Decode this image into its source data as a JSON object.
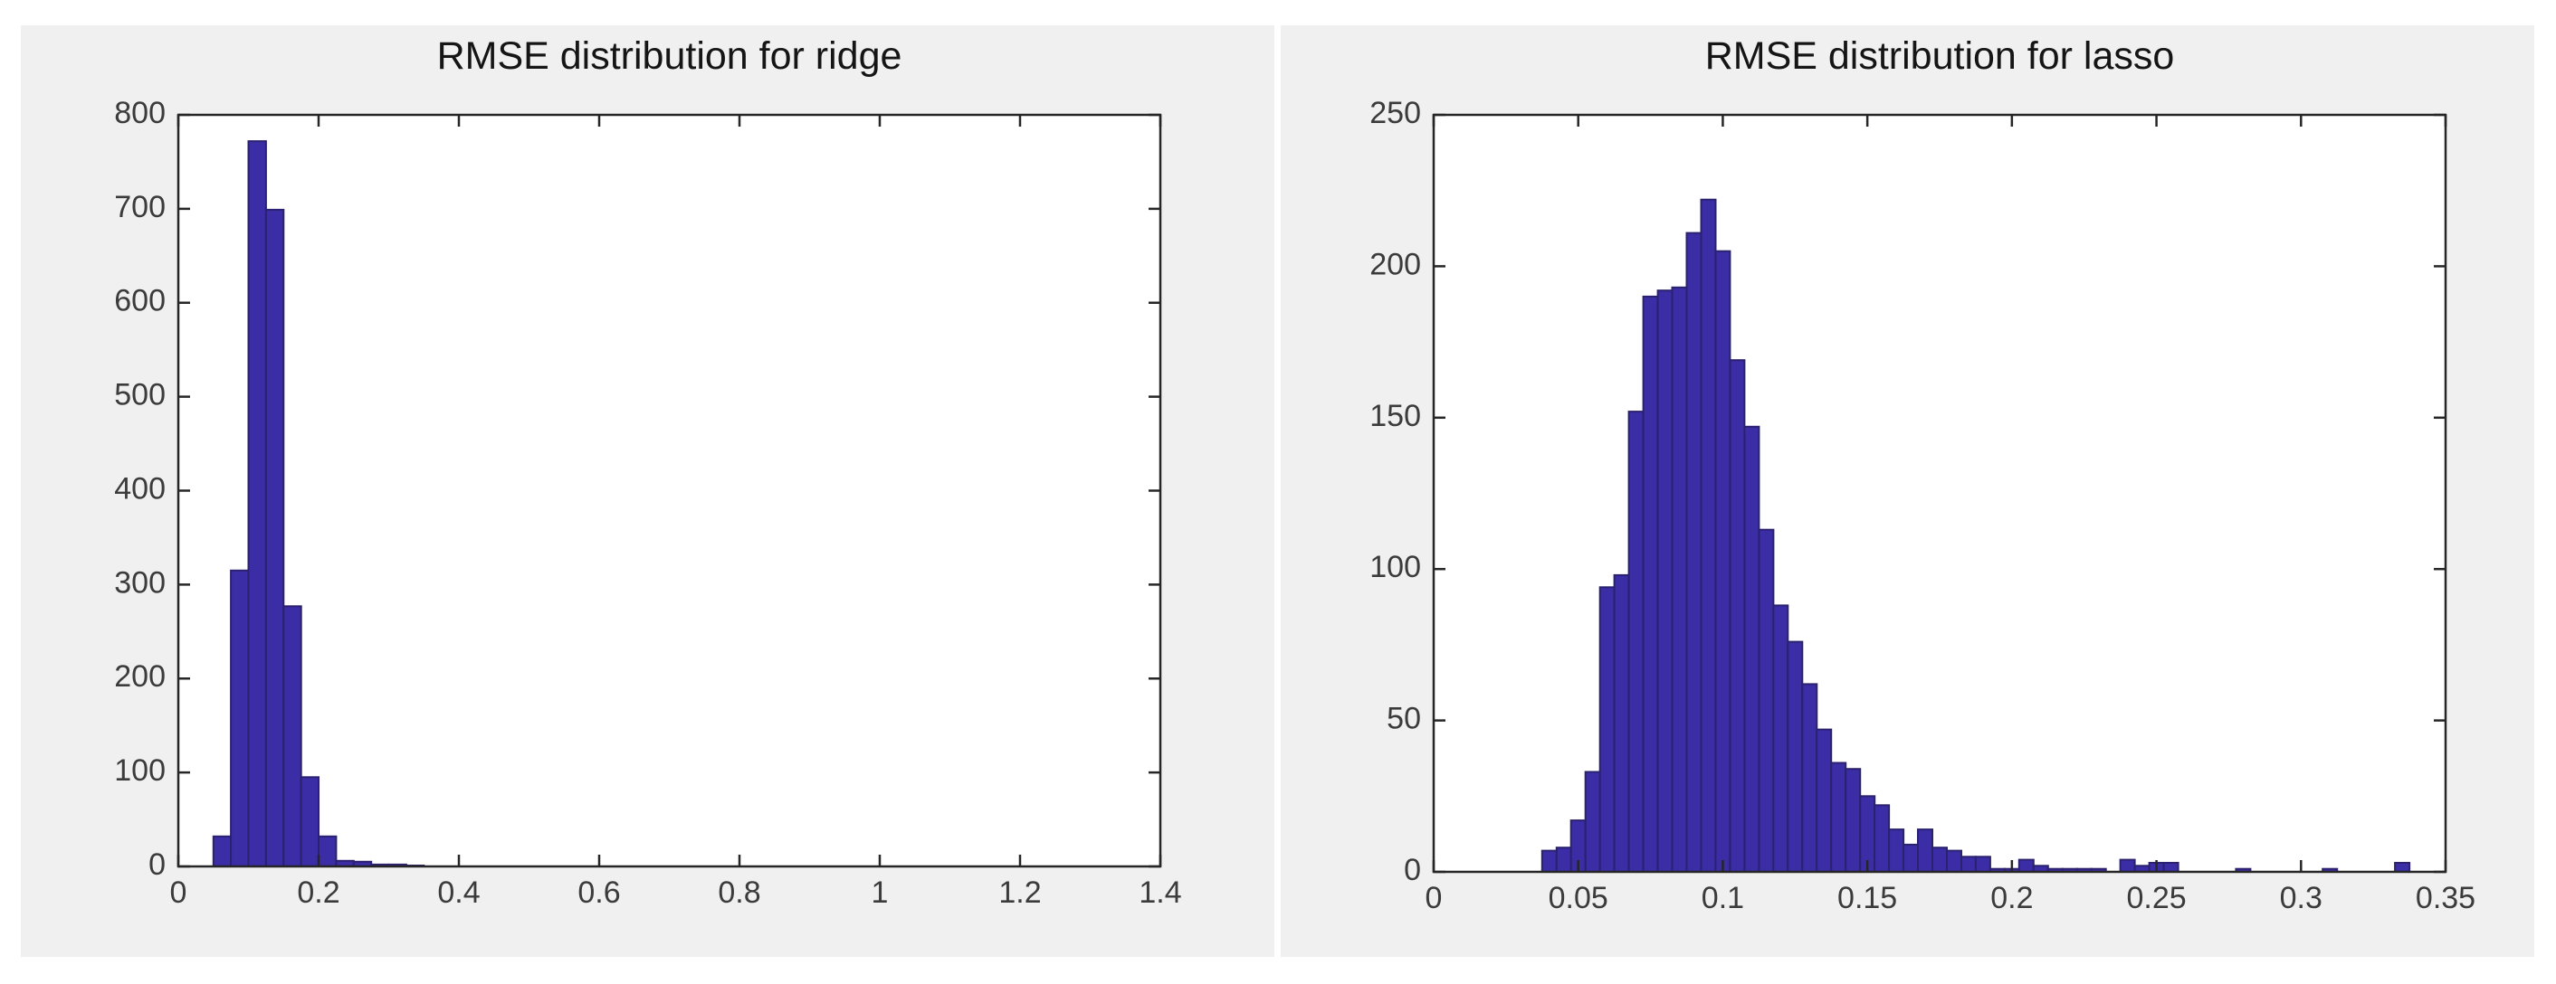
{
  "figure": {
    "background": "#ffffff",
    "panel_background": "#f0f0f0",
    "plot_background": "#ffffff",
    "bar_fill": "#3a2da5",
    "bar_edge": "#2b2170",
    "axis_color": "#262626",
    "tick_label_color": "#3b3b3b",
    "title_color": "#151515"
  },
  "chart_data": [
    {
      "id": "ridge",
      "type": "bar",
      "subtype": "histogram",
      "title": "RMSE distribution for ridge",
      "xlabel": "",
      "ylabel": "",
      "xlim": [
        0,
        1.4
      ],
      "ylim": [
        0,
        800
      ],
      "grid": false,
      "legend": null,
      "xtick_values": [
        0,
        0.2,
        0.4,
        0.6,
        0.8,
        1,
        1.2,
        1.4
      ],
      "xtick_labels": [
        "0",
        "0.2",
        "0.4",
        "0.6",
        "0.8",
        "1",
        "1.2",
        "1.4"
      ],
      "ytick_values": [
        0,
        100,
        200,
        300,
        400,
        500,
        600,
        700,
        800
      ],
      "ytick_labels": [
        "0",
        "100",
        "200",
        "300",
        "400",
        "500",
        "600",
        "700",
        "800"
      ],
      "bin_start": 0.05,
      "bin_width": 0.025,
      "values": [
        32,
        315,
        772,
        699,
        277,
        95,
        32,
        6,
        5,
        2,
        2,
        1
      ]
    },
    {
      "id": "lasso",
      "type": "bar",
      "subtype": "histogram",
      "title": "RMSE distribution for lasso",
      "xlabel": "",
      "ylabel": "",
      "xlim": [
        0,
        0.35
      ],
      "ylim": [
        0,
        250
      ],
      "grid": false,
      "legend": null,
      "xtick_values": [
        0,
        0.05,
        0.1,
        0.15,
        0.2,
        0.25,
        0.3,
        0.35
      ],
      "xtick_labels": [
        "0",
        "0.05",
        "0.1",
        "0.15",
        "0.2",
        "0.25",
        "0.3",
        "0.35"
      ],
      "ytick_values": [
        0,
        50,
        100,
        150,
        200,
        250
      ],
      "ytick_labels": [
        "0",
        "50",
        "100",
        "150",
        "200",
        "250"
      ],
      "bin_start": 0.0375,
      "bin_width": 0.005,
      "values": [
        7,
        8,
        17,
        33,
        94,
        98,
        152,
        190,
        192,
        193,
        211,
        222,
        205,
        169,
        147,
        113,
        88,
        76,
        62,
        47,
        36,
        34,
        25,
        22,
        14,
        9,
        14,
        8,
        7,
        5,
        5,
        1,
        1,
        4,
        2,
        1,
        1,
        1,
        1,
        0,
        4,
        2,
        3,
        3,
        0,
        0,
        0,
        0,
        1,
        0,
        0,
        0,
        0,
        0,
        1,
        0,
        0,
        0,
        0,
        3
      ]
    }
  ],
  "layout_note": "Two MATLAB-style figure panels side by side on white canvas"
}
